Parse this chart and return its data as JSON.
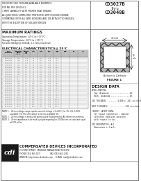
{
  "title_right_line1": "CD3027B",
  "title_right_line2": "thru",
  "title_right_line3": "CD3048B",
  "header_text_lines": [
    "CD3027B THRU CD3048B AVAILABLE NUMERICS",
    "FOR MIL-PRF-19500/61",
    "1 PART CAPABILITY WITH PROPER HEAT SINKING",
    "ALL JUNCTIONS COMPLETELY PROTECTED WITH SILICON DIOXIDE",
    "COMPATIBLE WITH ALL WIRE BONDING AND DIE ATTACH TECHNIQUES,",
    "WITH THE EXCEPTION OF SOLDER REFLOW"
  ],
  "max_ratings_title": "MAXIMUM RATINGS",
  "max_ratings_lines": [
    "Operating Temperature: -65°C to +175°C",
    "Storage Temperature: -65°C to +175°C",
    "Forward Voltage@ 200mA: 1.2 volts maximum"
  ],
  "elec_char_title": "ELECTRICAL CHARACTERISTICS@ 25°C",
  "table_rows": [
    [
      "CD3027B",
      "20.0",
      "12.5",
      "22",
      "700",
      "0.25",
      "19.0"
    ],
    [
      "CD3028B",
      "22.0",
      "11.5",
      "23",
      "700",
      "0.25",
      "21.0"
    ],
    [
      "CD3029B",
      "24.0",
      "10.5",
      "25",
      "700",
      "0.25",
      "23.0"
    ],
    [
      "CD3030B",
      "27.0",
      "9.5",
      "35",
      "700",
      "0.25",
      "25.0"
    ],
    [
      "CD3031B",
      "30.0",
      "8.5",
      "40",
      "700",
      "0.25",
      "28.0"
    ],
    [
      "CD3032B",
      "33.0",
      "7.5",
      "45",
      "700",
      "0.25",
      "31.0"
    ],
    [
      "CD3033B",
      "36.0",
      "7.0",
      "50",
      "700",
      "0.25",
      "34.0"
    ],
    [
      "CD3034B",
      "39.0",
      "6.5",
      "60",
      "700",
      "0.25",
      "37.0"
    ],
    [
      "CD3035B",
      "43.0",
      "6.0",
      "70",
      "700",
      "0.25",
      "40.0"
    ],
    [
      "CD3036B",
      "47.0",
      "5.5",
      "80",
      "700",
      "0.25",
      "44.0"
    ],
    [
      "CD3037B",
      "51.0",
      "5.0",
      "95",
      "700",
      "0.25",
      "48.0"
    ],
    [
      "CD3038B",
      "56.0",
      "4.5",
      "110",
      "700",
      "0.25",
      "53.0"
    ],
    [
      "CD3039B",
      "62.0",
      "4.0",
      "125",
      "700",
      "0.25",
      "58.0"
    ],
    [
      "CD3040B",
      "68.0",
      "3.7",
      "150",
      "700",
      "0.25",
      "64.0"
    ],
    [
      "CD3041B",
      "75.0",
      "3.3",
      "175",
      "700",
      "0.25",
      "70.0"
    ],
    [
      "CD3042B",
      "82.0",
      "3.0",
      "200",
      "700",
      "0.25",
      "77.0"
    ],
    [
      "CD3043B",
      "91.0",
      "2.8",
      "250",
      "700",
      "0.25",
      "85.0"
    ],
    [
      "CD3044B",
      "100.0",
      "2.5",
      "350",
      "700",
      "0.25",
      "94.0"
    ],
    [
      "CD3045B",
      "110.0",
      "2.3",
      "450",
      "700",
      "0.25",
      "103.0"
    ],
    [
      "CD3046B",
      "120.0",
      "2.1",
      "600",
      "700",
      "0.25",
      "113.0"
    ],
    [
      "CD3047B",
      "130.0",
      "1.9",
      "700",
      "700",
      "0.25",
      "122.0"
    ],
    [
      "CD3048B",
      "150.0",
      "1.7",
      "1000",
      "700",
      "0.25",
      "141.0"
    ]
  ],
  "col_headers": [
    [
      "CDI",
      "TYPE",
      "NUMBER"
    ],
    [
      "NOMINAL",
      "ZENER",
      "VOLTAGE",
      "VZ(V)"
    ],
    [
      "ZENER",
      "CURRENT",
      "IZT",
      "mA"
    ],
    [
      "ZENER KNEE IMPEDANCE"
    ],
    [
      "ZZT Ω",
      "",
      "ZZK Ω"
    ],
    [
      "",
      ""
    ],
    [
      "MAX DC",
      "ZENER",
      "CURRENT",
      "IZM mA"
    ],
    [
      "MAX REVERSE",
      "CURRENT IR",
      "μA",
      "@VR"
    ]
  ],
  "notes": [
    "NOTE 1:   Zener voltage range equals nominal voltage x (1±5%). For 1%, 2%, 5-50%",
    "             available. For 5% units above 1.0 Ω are available 1%.",
    "NOTE 2:   Zener voltage is measured during pulse measurement. All references nominal.",
    "NOTE 3:   Zener impedance is derived by superimposing Irz 1000Hz test on constant equal",
    "             at 10% of Izt."
  ],
  "design_data_title": "DESIGN DATA",
  "design_lines": [
    "METALLIZATION:",
    "  Top: Aluminum ................. Al",
    "  Back: Aluminum ................ Al",
    "",
    "DIE THICKNESS ........ 4.000 ± .001 in.thick",
    "",
    "BODY THICKNESS ............. .010 in.thick",
    "",
    "CIRCUIT LAYOUT DATA:",
    "  For layout separation : nominal",
    "  tolerance capacited position",
    "  with respect to die",
    "",
    "DIE ORIENTATION: A+C",
    "  Dimensions ± 3 mils"
  ],
  "figure_caption": "Bottom is Cathode",
  "figure_label": "FIGURE 1",
  "company_name": "COMPENSATED DEVICES INCORPORATED",
  "company_addr1": "22 COREY STREET   MELROSE, MASSACHUSETTS 02176",
  "company_addr2": "PHONE (781) 665-1071                FAX (781) 665-1252",
  "company_addr3": "WEBSITE: http://www.cdi-diodes.com     E-MAIL: mail@cdi-diodes.com",
  "bg_color": "#ffffff",
  "text_color": "#1a1a1a",
  "gray_light": "#d0d0d0",
  "gray_header": "#c0c0c0",
  "footer_bg": "#2a2a2a",
  "divider_color": "#666666"
}
